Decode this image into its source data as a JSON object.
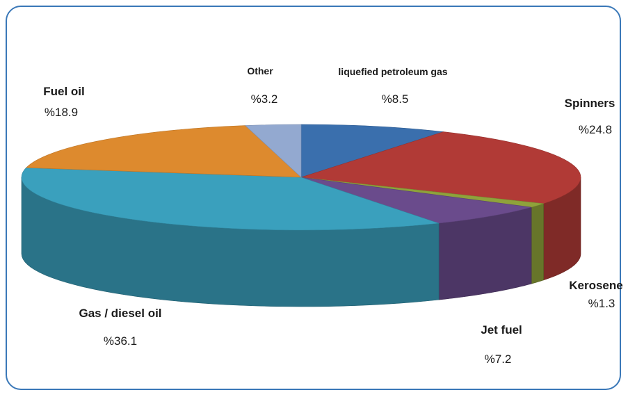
{
  "chart_data": {
    "type": "pie",
    "style": "3d",
    "title": "",
    "slices": [
      {
        "name": "liquefied petroleum gas",
        "value": "%8.5",
        "percent": 8.5,
        "color": "#3a6fad"
      },
      {
        "name": "Spinners",
        "value": "%24.8",
        "percent": 24.8,
        "color": "#b13a36"
      },
      {
        "name": "Kerosene",
        "value": "%1.3",
        "percent": 1.3,
        "color": "#8fa23b"
      },
      {
        "name": "Jet fuel",
        "value": "%7.2",
        "percent": 7.2,
        "color": "#6a4b8c"
      },
      {
        "name": "Gas / diesel oil",
        "value": "%36.1",
        "percent": 36.1,
        "color": "#3aa0bd"
      },
      {
        "name": "Fuel oil",
        "value": "%18.9",
        "percent": 18.9,
        "color": "#dd8a2e"
      },
      {
        "name": "Other",
        "value": "%3.2",
        "percent": 3.2,
        "color": "#93a9d0"
      }
    ]
  }
}
